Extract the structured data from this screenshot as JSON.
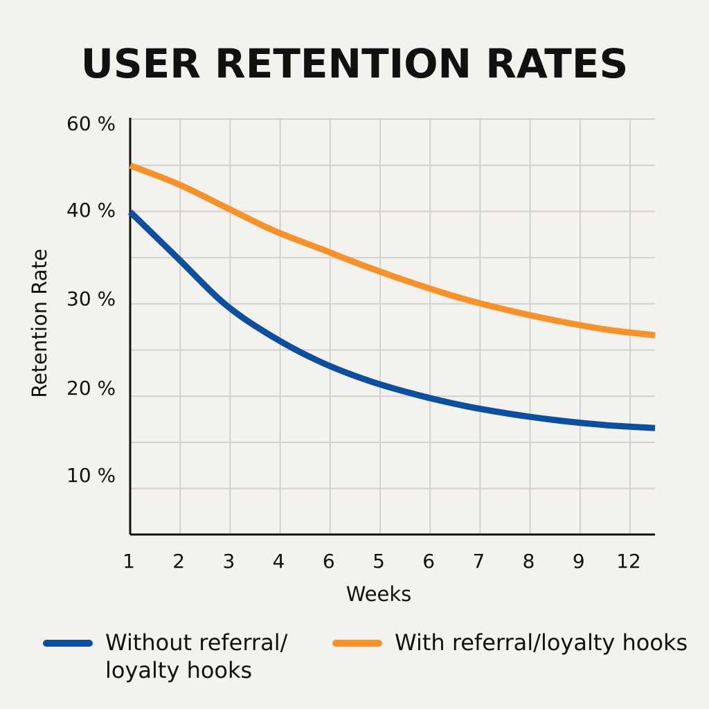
{
  "chart_data": {
    "type": "line",
    "title": "USER RETENTION RATES",
    "xlabel": "Weeks",
    "ylabel": "Retention Rate",
    "x_tick_labels": [
      "1",
      "2",
      "3",
      "4",
      "6",
      "5",
      "6",
      "7",
      "8",
      "9",
      "12"
    ],
    "y_ticks": [
      {
        "value": 60,
        "label": "60 %"
      },
      {
        "value": 40,
        "label": "40 %"
      },
      {
        "value": 30,
        "label": "30 %"
      },
      {
        "value": 20,
        "label": "20 %"
      },
      {
        "value": 10,
        "label": "10 %"
      }
    ],
    "grid": true,
    "legend_position": "bottom",
    "series": [
      {
        "name": "Without referral/ loyalty hooks",
        "color": "#0b4f9e",
        "values": [
          40,
          35,
          30,
          26.5,
          23.8,
          21.8,
          20.3,
          19.1,
          18.2,
          17.5,
          17,
          16.7
        ]
      },
      {
        "name": "With referral/loyalty hooks",
        "color": "#f7912a",
        "values": [
          45,
          43,
          40.5,
          38,
          36,
          34,
          32.2,
          30.6,
          29.3,
          28.2,
          27.3,
          26.7
        ]
      }
    ]
  }
}
